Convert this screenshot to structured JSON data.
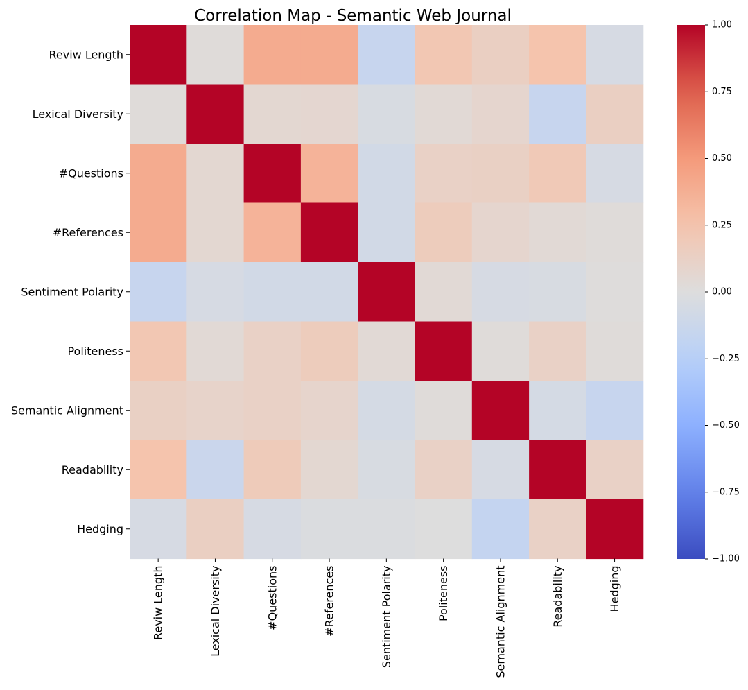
{
  "chart_data": {
    "type": "heatmap",
    "title": "Correlation Map - Semantic Web Journal",
    "row_labels": [
      "Reviw Length",
      "Lexical Diversity",
      "#Questions",
      "#References",
      "Sentiment Polarity",
      "Politeness",
      "Semantic Alignment",
      "Readability",
      "Hedging"
    ],
    "col_labels": [
      "Reviw Length",
      "Lexical Diversity",
      "#Questions",
      "#References",
      "Sentiment Polarity",
      "Politeness",
      "Semantic Alignment",
      "Readability",
      "Hedging"
    ],
    "values": [
      [
        1.0,
        0.02,
        0.4,
        0.4,
        -0.15,
        0.22,
        0.14,
        0.25,
        -0.05
      ],
      [
        0.02,
        1.0,
        0.06,
        0.07,
        -0.04,
        0.04,
        0.08,
        -0.15,
        0.14
      ],
      [
        0.4,
        0.06,
        1.0,
        0.35,
        -0.08,
        0.12,
        0.13,
        0.2,
        -0.05
      ],
      [
        0.4,
        0.06,
        0.35,
        1.0,
        -0.08,
        0.17,
        0.08,
        0.04,
        0.02
      ],
      [
        -0.15,
        -0.05,
        -0.08,
        -0.08,
        1.0,
        0.04,
        -0.05,
        -0.04,
        0.01
      ],
      [
        0.22,
        0.04,
        0.12,
        0.17,
        0.04,
        1.0,
        0.02,
        0.12,
        0.02
      ],
      [
        0.13,
        0.1,
        0.12,
        0.09,
        -0.06,
        0.02,
        1.0,
        -0.06,
        -0.15
      ],
      [
        0.25,
        -0.13,
        0.18,
        0.06,
        -0.04,
        0.12,
        -0.05,
        1.0,
        0.12
      ],
      [
        -0.05,
        0.14,
        -0.05,
        -0.02,
        -0.02,
        0.0,
        -0.17,
        0.12,
        1.0
      ]
    ],
    "colormap": "coolwarm",
    "vmin": -1.0,
    "vmax": 1.0,
    "colorbar_ticks": [
      "1.00",
      "0.75",
      "0.50",
      "0.25",
      "0.00",
      "−0.25",
      "−0.50",
      "−0.75",
      "−1.00"
    ],
    "colorbar_values": [
      1.0,
      0.75,
      0.5,
      0.25,
      0.0,
      -0.25,
      -0.5,
      -0.75,
      -1.0
    ]
  }
}
